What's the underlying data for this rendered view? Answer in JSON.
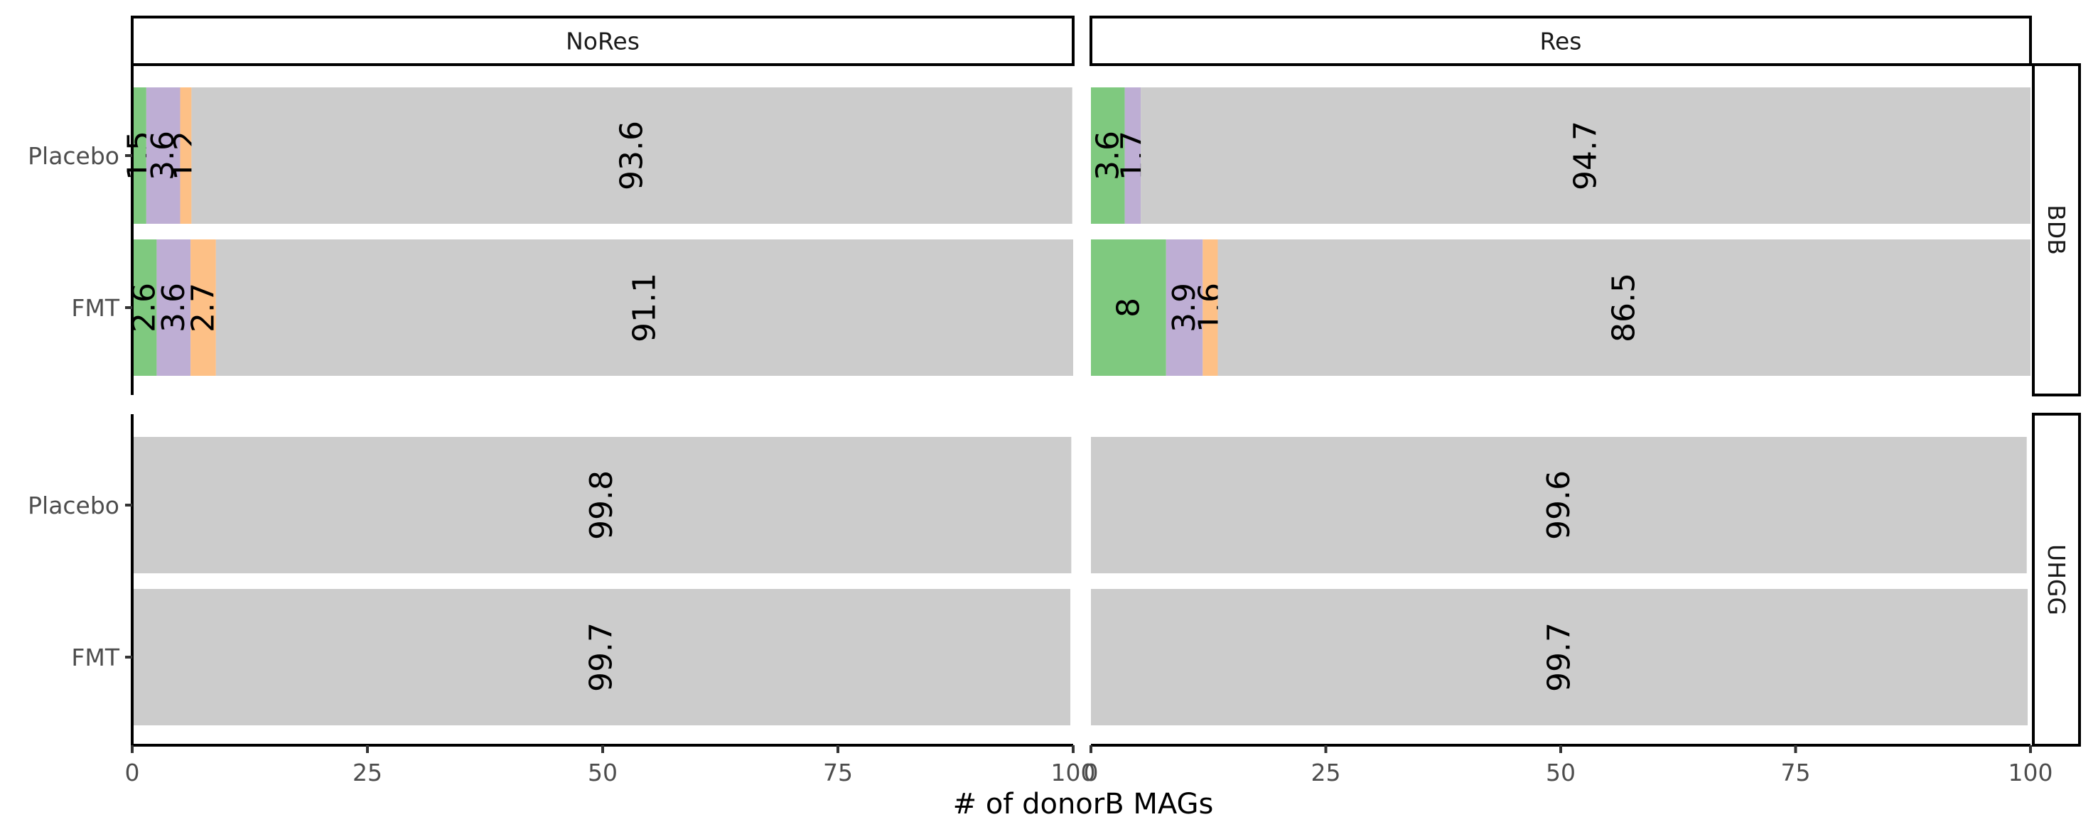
{
  "chart_data": {
    "type": "bar",
    "orientation": "horizontal",
    "stacked": true,
    "xlabel": "# of donorB MAGs",
    "xlim": [
      0,
      100
    ],
    "xticks": [
      0,
      25,
      50,
      75,
      100
    ],
    "facet_cols": [
      "NoRes",
      "Res"
    ],
    "facet_rows": [
      "BDB",
      "UHGG"
    ],
    "categories": [
      "Placebo",
      "FMT"
    ],
    "segment_colors": [
      "#7fc97f",
      "#beaed4",
      "#fdc086",
      "#cccccc"
    ],
    "panels": [
      {
        "row": "BDB",
        "col": "NoRes",
        "bars": [
          {
            "category": "Placebo",
            "segments": [
              1.5,
              3.6,
              1.2,
              93.6
            ]
          },
          {
            "category": "FMT",
            "segments": [
              2.6,
              3.6,
              2.7,
              91.1
            ]
          }
        ]
      },
      {
        "row": "BDB",
        "col": "Res",
        "bars": [
          {
            "category": "Placebo",
            "segments": [
              3.6,
              1.7,
              0,
              94.7
            ]
          },
          {
            "category": "FMT",
            "segments": [
              8,
              3.9,
              1.6,
              86.5
            ]
          }
        ]
      },
      {
        "row": "UHGG",
        "col": "NoRes",
        "bars": [
          {
            "category": "Placebo",
            "segments": [
              0,
              0,
              0,
              99.8
            ]
          },
          {
            "category": "FMT",
            "segments": [
              0,
              0,
              0,
              99.7
            ]
          }
        ]
      },
      {
        "row": "UHGG",
        "col": "Res",
        "bars": [
          {
            "category": "Placebo",
            "segments": [
              0,
              0,
              0,
              99.6
            ]
          },
          {
            "category": "FMT",
            "segments": [
              0,
              0,
              0,
              99.7
            ]
          }
        ]
      }
    ]
  }
}
